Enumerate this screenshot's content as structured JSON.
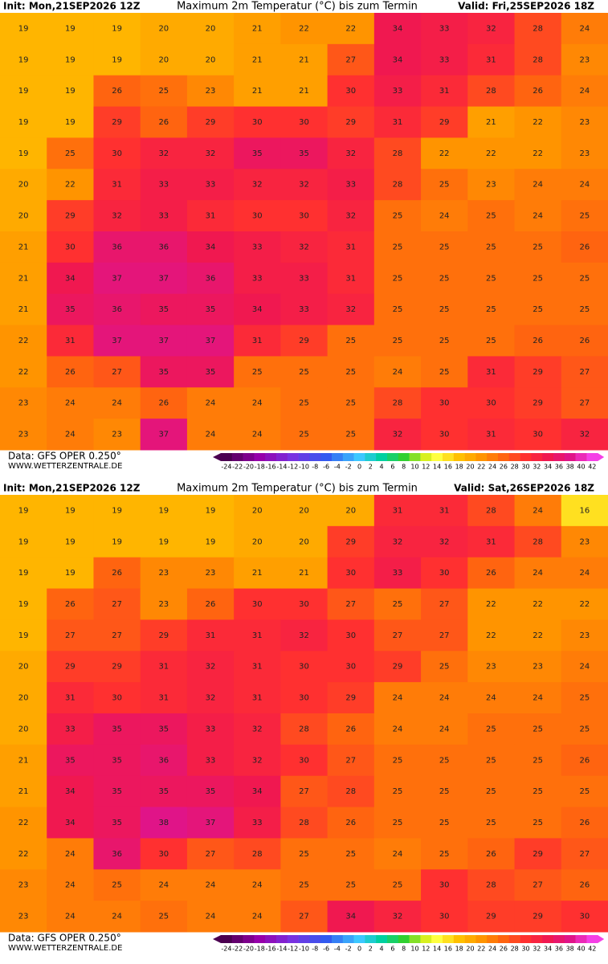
{
  "panels": [
    {
      "init": "Init: Mon,21SEP2026 12Z",
      "title": "Maximum 2m Temperatur (°C) bis zum Termin",
      "valid": "Valid: Fri,25SEP2026 18Z",
      "source": "Data: GFS OPER 0.250°",
      "site": "WWW.WETTERZENTRALE.DE",
      "grid": [
        [
          19,
          19,
          19,
          20,
          20,
          21,
          22,
          22,
          34,
          33,
          32,
          28,
          24
        ],
        [
          19,
          19,
          19,
          20,
          20,
          21,
          21,
          27,
          34,
          33,
          31,
          28,
          23
        ],
        [
          19,
          19,
          26,
          25,
          23,
          21,
          21,
          30,
          33,
          31,
          28,
          26,
          24
        ],
        [
          19,
          19,
          29,
          26,
          29,
          30,
          30,
          29,
          31,
          29,
          21,
          22,
          23
        ],
        [
          19,
          25,
          30,
          32,
          32,
          35,
          35,
          32,
          28,
          22,
          22,
          22,
          23
        ],
        [
          20,
          22,
          31,
          33,
          33,
          32,
          32,
          33,
          28,
          25,
          23,
          24,
          24
        ],
        [
          20,
          29,
          32,
          33,
          31,
          30,
          30,
          32,
          25,
          24,
          25,
          24,
          25
        ],
        [
          21,
          30,
          36,
          36,
          34,
          33,
          32,
          31,
          25,
          25,
          25,
          25,
          26
        ],
        [
          21,
          34,
          37,
          37,
          36,
          33,
          33,
          31,
          25,
          25,
          25,
          25,
          25
        ],
        [
          21,
          35,
          36,
          35,
          35,
          34,
          33,
          32,
          25,
          25,
          25,
          25,
          25
        ],
        [
          22,
          31,
          37,
          37,
          37,
          31,
          29,
          25,
          25,
          25,
          25,
          26,
          26
        ],
        [
          22,
          26,
          27,
          35,
          35,
          25,
          25,
          25,
          24,
          25,
          31,
          29,
          27
        ],
        [
          23,
          24,
          24,
          26,
          24,
          24,
          25,
          25,
          28,
          30,
          30,
          29,
          27
        ],
        [
          23,
          24,
          23,
          37,
          24,
          24,
          25,
          25,
          32,
          30,
          31,
          30,
          32
        ]
      ]
    },
    {
      "init": "Init: Mon,21SEP2026 12Z",
      "title": "Maximum 2m Temperatur (°C) bis zum Termin",
      "valid": "Valid: Sat,26SEP2026 18Z",
      "source": "Data: GFS OPER 0.250°",
      "site": "WWW.WETTERZENTRALE.DE",
      "grid": [
        [
          19,
          19,
          19,
          19,
          19,
          20,
          20,
          20,
          31,
          31,
          28,
          24,
          16
        ],
        [
          19,
          19,
          19,
          19,
          19,
          20,
          20,
          29,
          32,
          32,
          31,
          28,
          23
        ],
        [
          19,
          19,
          26,
          23,
          23,
          21,
          21,
          30,
          33,
          30,
          26,
          24,
          24
        ],
        [
          19,
          26,
          27,
          23,
          26,
          30,
          30,
          27,
          25,
          27,
          22,
          22,
          22
        ],
        [
          19,
          27,
          27,
          29,
          31,
          31,
          32,
          30,
          27,
          27,
          22,
          22,
          23
        ],
        [
          20,
          29,
          29,
          31,
          32,
          31,
          30,
          30,
          29,
          25,
          23,
          23,
          24
        ],
        [
          20,
          31,
          30,
          31,
          32,
          31,
          30,
          29,
          24,
          24,
          24,
          24,
          25
        ],
        [
          20,
          33,
          35,
          35,
          33,
          32,
          28,
          26,
          24,
          24,
          25,
          25,
          25
        ],
        [
          21,
          35,
          35,
          36,
          33,
          32,
          30,
          27,
          25,
          25,
          25,
          25,
          26
        ],
        [
          21,
          34,
          35,
          35,
          35,
          34,
          27,
          28,
          25,
          25,
          25,
          25,
          25
        ],
        [
          22,
          34,
          35,
          38,
          37,
          33,
          28,
          26,
          25,
          25,
          25,
          25,
          26
        ],
        [
          22,
          24,
          36,
          30,
          27,
          28,
          25,
          25,
          24,
          25,
          26,
          29,
          27
        ],
        [
          23,
          24,
          25,
          24,
          24,
          24,
          25,
          25,
          25,
          30,
          28,
          27,
          26
        ],
        [
          23,
          24,
          24,
          25,
          24,
          24,
          27,
          34,
          32,
          30,
          29,
          29,
          30
        ]
      ]
    }
  ],
  "colorbar": {
    "labels": [
      -24,
      -22,
      -20,
      -18,
      -16,
      -14,
      -12,
      -10,
      -8,
      -6,
      -4,
      -2,
      0,
      2,
      4,
      6,
      8,
      10,
      12,
      14,
      16,
      18,
      20,
      22,
      24,
      26,
      28,
      30,
      32,
      34,
      36,
      38,
      40,
      42
    ]
  }
}
